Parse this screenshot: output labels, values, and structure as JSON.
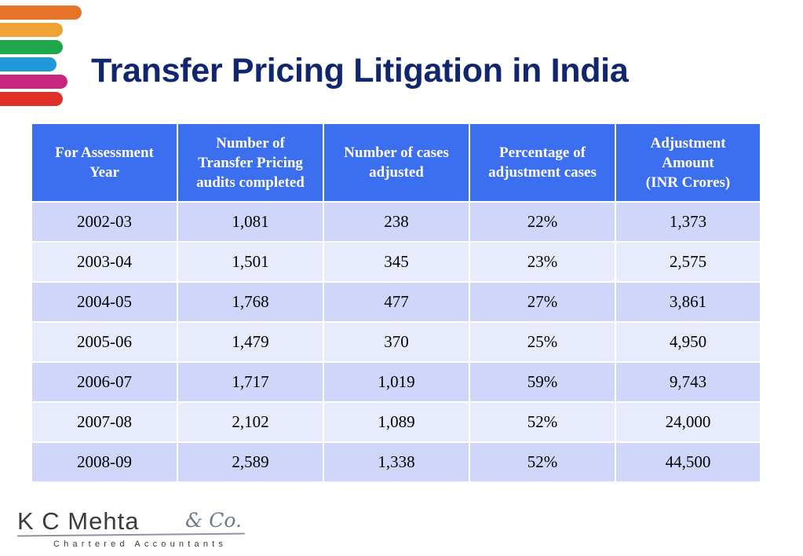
{
  "colors": {
    "stripes": [
      "#e8742a",
      "#f0a335",
      "#1fa84a",
      "#1f98d8",
      "#c7267f",
      "#e0302a"
    ],
    "title": "#10266e",
    "header_bg": "#3c6ff0",
    "row_odd": "#cfd6fa",
    "row_even": "#e8ebfb"
  },
  "slide": {
    "title": "Transfer Pricing Litigation in India"
  },
  "table": {
    "headers": [
      [
        "For Assessment",
        "Year"
      ],
      [
        "Number of",
        "Transfer Pricing",
        "audits completed"
      ],
      [
        "Number of cases",
        "adjusted"
      ],
      [
        "Percentage of",
        "adjustment cases"
      ],
      [
        "Adjustment",
        "Amount",
        "(INR Crores)"
      ]
    ],
    "rows": [
      [
        "2002-03",
        "1,081",
        "238",
        "22%",
        "1,373"
      ],
      [
        "2003-04",
        "1,501",
        "345",
        "23%",
        "2,575"
      ],
      [
        "2004-05",
        "1,768",
        "477",
        "27%",
        "3,861"
      ],
      [
        "2005-06",
        "1,479",
        "370",
        "25%",
        "4,950"
      ],
      [
        "2006-07",
        "1,717",
        "1,019",
        "59%",
        "9,743"
      ],
      [
        "2007-08",
        "2,102",
        "1,089",
        "52%",
        "24,000"
      ],
      [
        "2008-09",
        "2,589",
        "1,338",
        "52%",
        "44,500"
      ]
    ]
  },
  "logo": {
    "name": "K C Mehta",
    "suffix": "& Co.",
    "tagline": "Chartered Accountants"
  }
}
